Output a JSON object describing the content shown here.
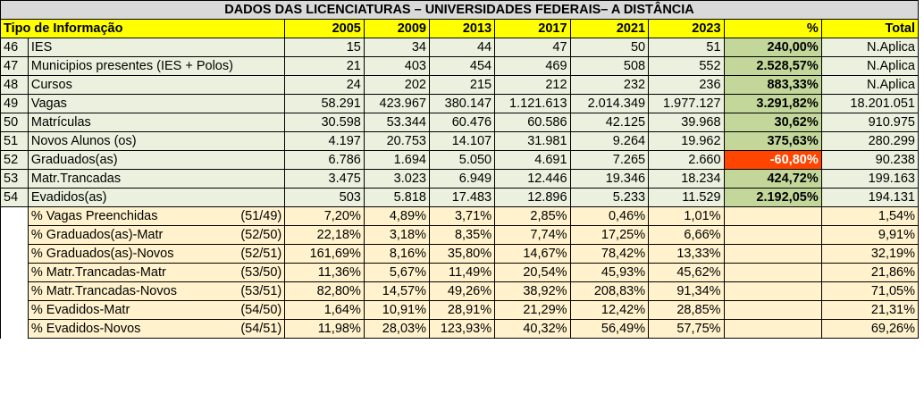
{
  "title": "DADOS DAS LICENCIATURAS – UNIVERSIDADES FEDERAIS– A DISTÂNCIA",
  "header": {
    "label": "Tipo de Informação",
    "years": [
      "2005",
      "2009",
      "2013",
      "2017",
      "2021",
      "2023"
    ],
    "pct": "%",
    "total": "Total"
  },
  "rows": [
    {
      "id": "46",
      "label": "IES",
      "values": [
        "15",
        "34",
        "44",
        "47",
        "50",
        "51"
      ],
      "pct": "240,00%",
      "total": "N.Aplica"
    },
    {
      "id": "47",
      "label": "Municipios presentes (IES + Polos)",
      "values": [
        "21",
        "403",
        "454",
        "469",
        "508",
        "552"
      ],
      "pct": "2.528,57%",
      "total": "N.Aplica"
    },
    {
      "id": "48",
      "label": "Cursos",
      "values": [
        "24",
        "202",
        "215",
        "212",
        "232",
        "236"
      ],
      "pct": "883,33%",
      "total": "N.Aplica"
    },
    {
      "id": "49",
      "label": "Vagas",
      "values": [
        "58.291",
        "423.967",
        "380.147",
        "1.121.613",
        "2.014.349",
        "1.977.127"
      ],
      "pct": "3.291,82%",
      "total": "18.201.051"
    },
    {
      "id": "50",
      "label": "Matrículas",
      "values": [
        "30.598",
        "53.344",
        "60.476",
        "60.586",
        "42.125",
        "39.968"
      ],
      "pct": "30,62%",
      "total": "910.975"
    },
    {
      "id": "51",
      "label": "Novos Alunos (os)",
      "values": [
        "4.197",
        "20.753",
        "14.107",
        "31.981",
        "9.264",
        "19.962"
      ],
      "pct": "375,63%",
      "total": "280.299"
    },
    {
      "id": "52",
      "label": "Graduados(as)",
      "values": [
        "6.786",
        "1.694",
        "5.050",
        "4.691",
        "7.265",
        "2.660"
      ],
      "pct": "-60,80%",
      "total": "90.238",
      "negative": true
    },
    {
      "id": "53",
      "label": "Matr.Trancadas",
      "values": [
        "3.475",
        "3.023",
        "6.949",
        "12.446",
        "19.346",
        "18.234"
      ],
      "pct": "424,72%",
      "total": "199.163"
    },
    {
      "id": "54",
      "label": "Evadidos(as)",
      "values": [
        "503",
        "5.818",
        "17.483",
        "12.896",
        "5.233",
        "11.529"
      ],
      "pct": "2.192,05%",
      "total": "194.131"
    }
  ],
  "ratios": [
    {
      "label": "% Vagas Preenchidas",
      "ref": "(51/49)",
      "values": [
        "7,20%",
        "4,89%",
        "3,71%",
        "2,85%",
        "0,46%",
        "1,01%"
      ],
      "total": "1,54%"
    },
    {
      "label": "% Graduados(as)-Matr",
      "ref": "(52/50)",
      "values": [
        "22,18%",
        "3,18%",
        "8,35%",
        "7,74%",
        "17,25%",
        "6,66%"
      ],
      "total": "9,91%"
    },
    {
      "label": "% Graduados(as)-Novos",
      "ref": "(52/51)",
      "values": [
        "161,69%",
        "8,16%",
        "35,80%",
        "14,67%",
        "78,42%",
        "13,33%"
      ],
      "total": "32,19%"
    },
    {
      "label": "% Matr.Trancadas-Matr",
      "ref": "(53/50)",
      "values": [
        "11,36%",
        "5,67%",
        "11,49%",
        "20,54%",
        "45,93%",
        "45,62%"
      ],
      "total": "21,86%"
    },
    {
      "label": "% Matr.Trancadas-Novos",
      "ref": "(53/51)",
      "values": [
        "82,80%",
        "14,57%",
        "49,26%",
        "38,92%",
        "208,83%",
        "91,34%"
      ],
      "total": "71,05%"
    },
    {
      "label": "% Evadidos-Matr",
      "ref": "(54/50)",
      "values": [
        "1,64%",
        "10,91%",
        "28,91%",
        "21,29%",
        "12,42%",
        "28,85%"
      ],
      "total": "21,31%"
    },
    {
      "label": "% Evadidos-Novos",
      "ref": "(54/51)",
      "values": [
        "11,98%",
        "28,03%",
        "123,93%",
        "40,32%",
        "56,49%",
        "57,75%"
      ],
      "total": "69,26%"
    }
  ],
  "colors": {
    "header": "#ffff00",
    "title_bg": "#d9d9d9",
    "row_bg": "#ebf1de",
    "pct_bg": "#c4d79b",
    "negative_bg": "#ff4500",
    "ratio_bg": "#fff2cc"
  }
}
